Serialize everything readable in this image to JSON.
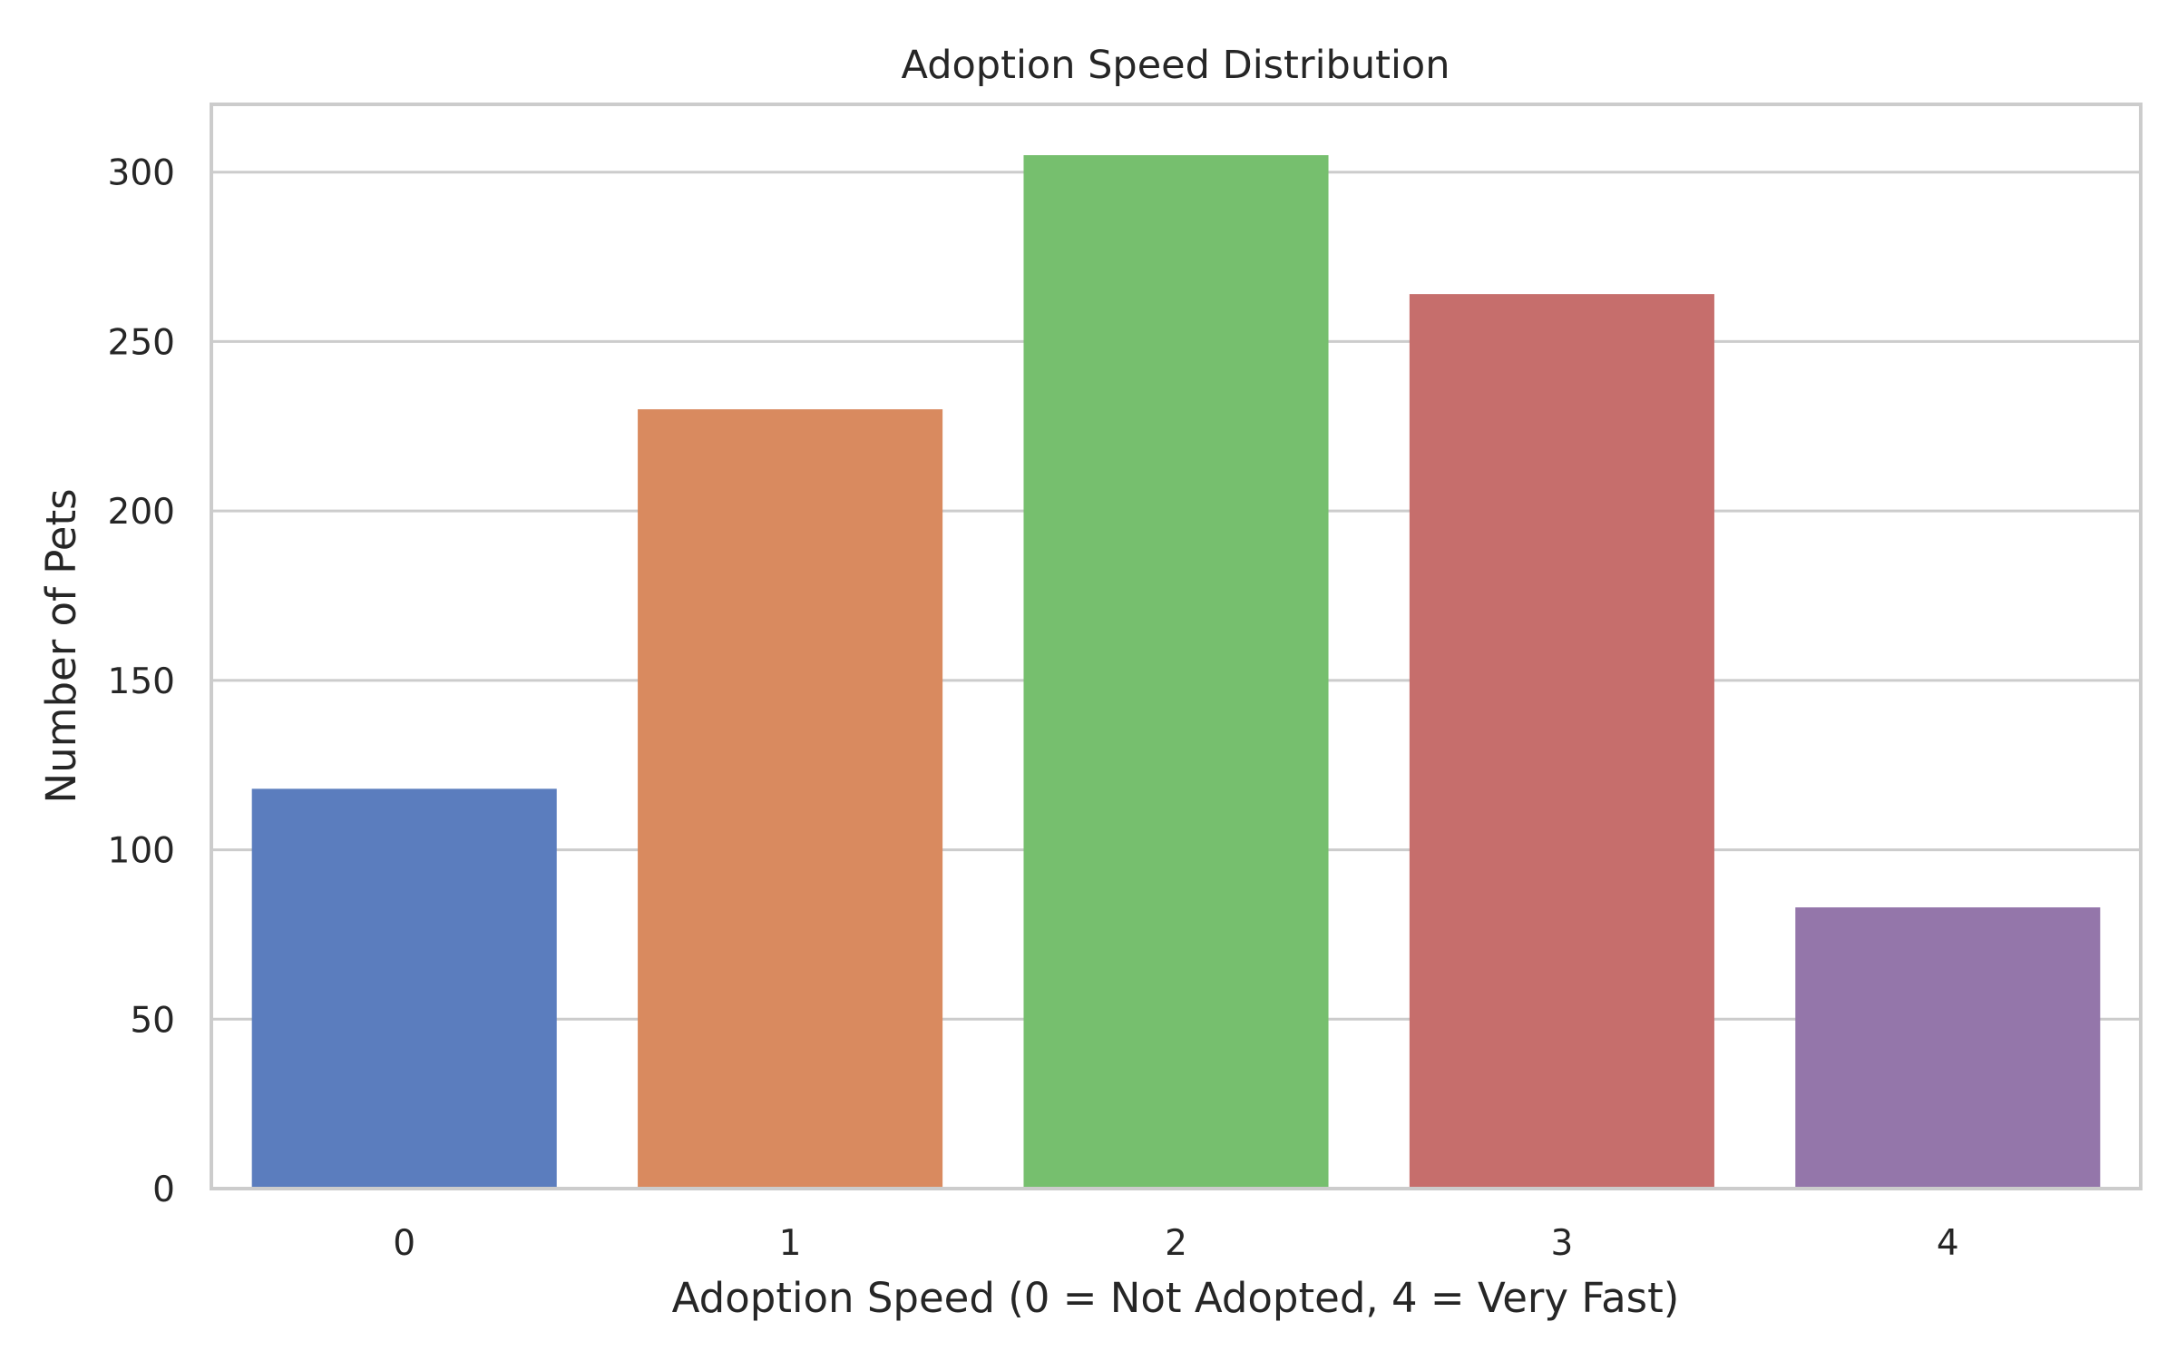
{
  "chart_data": {
    "type": "bar",
    "title": "Adoption Speed Distribution",
    "xlabel": "Adoption Speed (0 = Not Adopted, 4 = Very Fast)",
    "ylabel": "Number of Pets",
    "categories": [
      "0",
      "1",
      "2",
      "3",
      "4"
    ],
    "values": [
      118,
      230,
      305,
      264,
      83
    ],
    "colors": [
      "#5b7dbe",
      "#d98a5f",
      "#76bf6e",
      "#c66e6c",
      "#9476aa"
    ],
    "ylim": [
      0,
      320
    ],
    "yticks": [
      0,
      50,
      100,
      150,
      200,
      250,
      300
    ],
    "grid": "horizontal",
    "legend": "none"
  }
}
